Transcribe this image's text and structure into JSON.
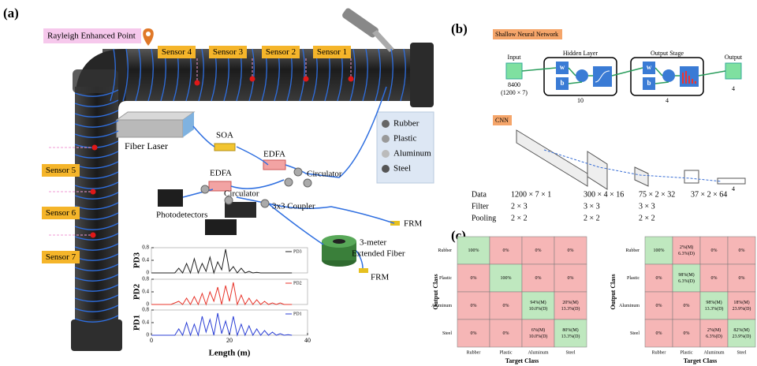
{
  "panel_labels": [
    "(a)",
    "(b)",
    "(c)"
  ],
  "classes": [
    "Rubber",
    "Plastic",
    "Aluminum",
    "Steel"
  ],
  "setup": {
    "rayleigh": "Rayleigh Enhanced Point",
    "sensors": [
      "Sensor 1",
      "Sensor 2",
      "Sensor 3",
      "Sensor 4",
      "Sensor 5",
      "Sensor 6",
      "Sensor 7"
    ],
    "fiber_laser": "Fiber Laser",
    "soa": "SOA",
    "edfa": [
      "EDFA",
      "EDFA"
    ],
    "circulator": [
      "Circulator",
      "Circulator"
    ],
    "photodetectors": "Photodetectors",
    "coupler": "3x3 Coupler",
    "frm": [
      "FRM",
      "FRM"
    ],
    "extended_fiber": [
      "3-meter",
      "Extended Fiber"
    ]
  },
  "pd_plot": {
    "xlabel": "Length (m)",
    "xlim": [
      0,
      40
    ],
    "xticks": [
      0,
      20,
      40
    ],
    "ylim": [
      0,
      0.8
    ],
    "yticks": [
      0,
      0.4,
      0.8
    ],
    "x": [
      0,
      1,
      2,
      3,
      4,
      5,
      6,
      7,
      8,
      9,
      10,
      11,
      12,
      13,
      14,
      15,
      16,
      17,
      18,
      19,
      20,
      21,
      22,
      23,
      24,
      25,
      26,
      27,
      28,
      29,
      30,
      31,
      32,
      33,
      34,
      35,
      36
    ],
    "traces": [
      {
        "name": "PD3",
        "color": "#222222",
        "values": [
          0,
          0,
          0,
          0,
          0,
          0,
          0,
          0.15,
          0,
          0.3,
          0,
          0.45,
          0,
          0.3,
          0.05,
          0.5,
          0,
          0.35,
          0.1,
          0.75,
          0.05,
          0.2,
          0,
          0.15,
          0,
          0.05,
          0,
          0.02,
          0,
          0,
          0,
          0,
          0,
          0,
          0,
          0,
          0
        ]
      },
      {
        "name": "PD2",
        "color": "#e8352b",
        "values": [
          0,
          0,
          0,
          0,
          0,
          0,
          0.05,
          0.1,
          0,
          0.2,
          0,
          0.25,
          0,
          0.35,
          0,
          0.4,
          0.1,
          0.55,
          0,
          0.6,
          0.1,
          0.7,
          0,
          0.3,
          0,
          0.2,
          0,
          0.15,
          0,
          0.1,
          0,
          0.05,
          0,
          0.05,
          0,
          0,
          0
        ]
      },
      {
        "name": "PD1",
        "color": "#2b3fd6",
        "values": [
          0,
          0,
          0,
          0,
          0,
          0,
          0,
          0.2,
          0,
          0.4,
          0,
          0.35,
          0,
          0.6,
          0.1,
          0.5,
          0,
          0.7,
          0.05,
          0.45,
          0,
          0.6,
          0,
          0.35,
          0,
          0.3,
          0,
          0.2,
          0,
          0.15,
          0,
          0.1,
          0,
          0.05,
          0,
          0.02,
          0
        ]
      }
    ]
  },
  "snn": {
    "title": "Shallow Neural Network",
    "input": "Input",
    "input_size": "8400",
    "input_shape": "(1200 × 7)",
    "hidden": "Hidden Layer",
    "hidden_size": "10",
    "output_stage": "Output Stage",
    "output_stage_size": "4",
    "output": "Output",
    "output_size": "4",
    "w": "w",
    "b": "b"
  },
  "cnn": {
    "title": "CNN",
    "output_size": "4",
    "rows": [
      [
        "Data",
        "1200 × 7 × 1",
        "300 × 4 × 16",
        "75 × 2 × 32",
        "37 × 2 × 64"
      ],
      [
        "Filter",
        "2 × 3",
        "3 × 3",
        "3 × 3"
      ],
      [
        "Pooling",
        "2 × 2",
        "2 × 2",
        "2 × 2"
      ]
    ]
  },
  "confusion": {
    "output_label": "Output Class",
    "target_label": "Target Class",
    "matrices": [
      {
        "cells": [
          [
            [
              "100%"
            ],
            [
              "0%"
            ],
            [
              "0%"
            ],
            [
              "0%"
            ]
          ],
          [
            [
              "0%"
            ],
            [
              "100%"
            ],
            [
              "0%"
            ],
            [
              "0%"
            ]
          ],
          [
            [
              "0%"
            ],
            [
              "0%"
            ],
            [
              "94%(M)",
              "10.0%(D)"
            ],
            [
              "20%(M)",
              "13.3%(D)"
            ]
          ],
          [
            [
              "0%"
            ],
            [
              "0%"
            ],
            [
              "6%(M)",
              "10.0%(D)"
            ],
            [
              "80%(M)",
              "13.3%(D)"
            ]
          ]
        ]
      },
      {
        "cells": [
          [
            [
              "100%"
            ],
            [
              "2%(M)",
              "6.3%(D)"
            ],
            [
              "0%"
            ],
            [
              "0%"
            ]
          ],
          [
            [
              "0%"
            ],
            [
              "98%(M)",
              "6.3%(D)"
            ],
            [
              "0%"
            ],
            [
              "0%"
            ]
          ],
          [
            [
              "0%"
            ],
            [
              "0%"
            ],
            [
              "98%(M)",
              "13.3%(D)"
            ],
            [
              "18%(M)",
              "23.9%(D)"
            ]
          ],
          [
            [
              "0%"
            ],
            [
              "0%"
            ],
            [
              "2%(M)",
              "6.3%(D)"
            ],
            [
              "82%(M)",
              "23.9%(D)"
            ]
          ]
        ]
      }
    ]
  }
}
